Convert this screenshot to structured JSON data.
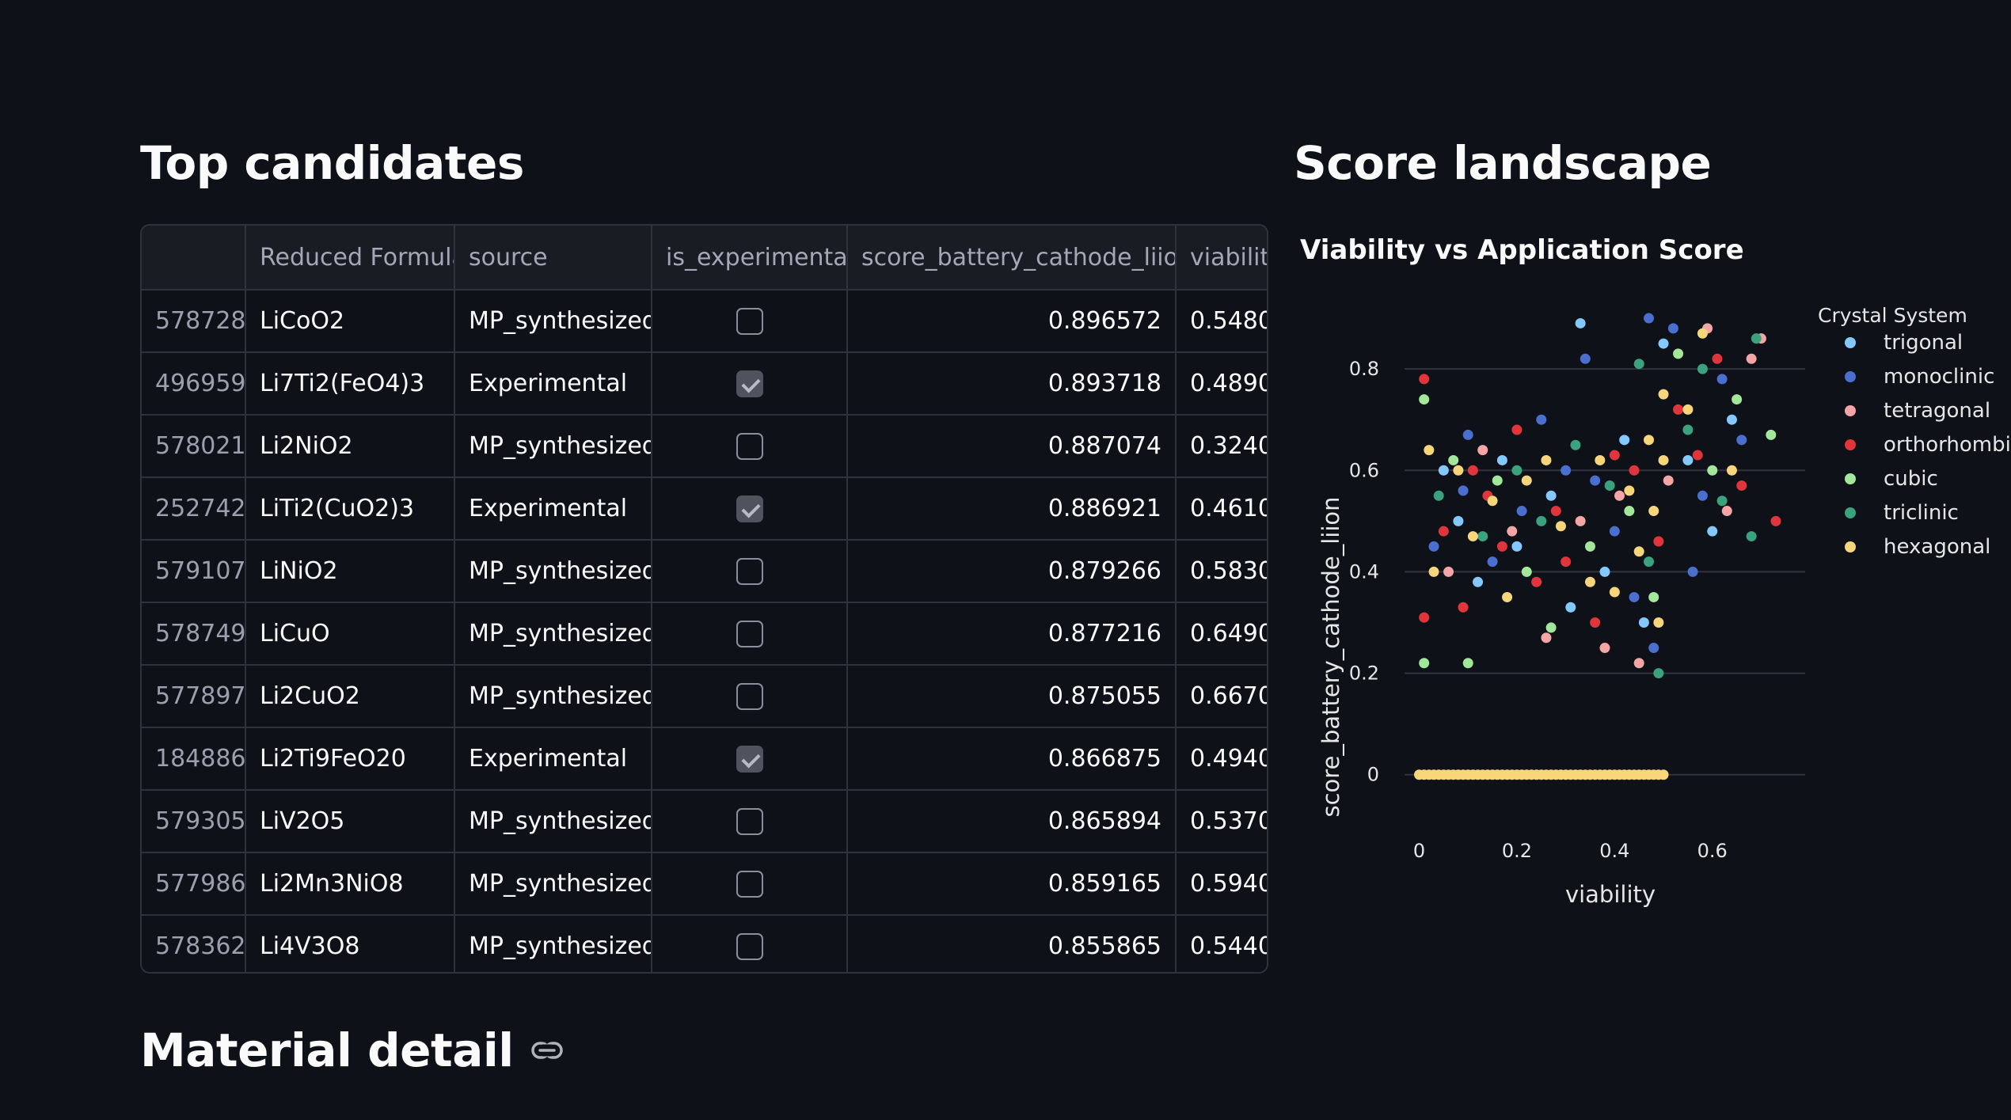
{
  "headings": {
    "top_candidates": "Top candidates",
    "score_landscape": "Score landscape",
    "material_detail": "Material detail"
  },
  "table": {
    "columns": [
      "",
      "Reduced Formula",
      "source",
      "is_experimental",
      "score_battery_cathode_liion",
      "viability"
    ],
    "rows": [
      {
        "index": "578728",
        "formula": "LiCoO2",
        "source": "MP_synthesized",
        "is_experimental": false,
        "score": "0.896572",
        "viability": "0.548000"
      },
      {
        "index": "496959",
        "formula": "Li7Ti2(FeO4)3",
        "source": "Experimental",
        "is_experimental": true,
        "score": "0.893718",
        "viability": "0.489000"
      },
      {
        "index": "578021",
        "formula": "Li2NiO2",
        "source": "MP_synthesized",
        "is_experimental": false,
        "score": "0.887074",
        "viability": "0.324000"
      },
      {
        "index": "252742",
        "formula": "LiTi2(CuO2)3",
        "source": "Experimental",
        "is_experimental": true,
        "score": "0.886921",
        "viability": "0.461000"
      },
      {
        "index": "579107",
        "formula": "LiNiO2",
        "source": "MP_synthesized",
        "is_experimental": false,
        "score": "0.879266",
        "viability": "0.583000"
      },
      {
        "index": "578749",
        "formula": "LiCuO",
        "source": "MP_synthesized",
        "is_experimental": false,
        "score": "0.877216",
        "viability": "0.649000"
      },
      {
        "index": "577897",
        "formula": "Li2CuO2",
        "source": "MP_synthesized",
        "is_experimental": false,
        "score": "0.875055",
        "viability": "0.667000"
      },
      {
        "index": "184886",
        "formula": "Li2Ti9FeO20",
        "source": "Experimental",
        "is_experimental": true,
        "score": "0.866875",
        "viability": "0.494000"
      },
      {
        "index": "579305",
        "formula": "LiV2O5",
        "source": "MP_synthesized",
        "is_experimental": false,
        "score": "0.865894",
        "viability": "0.537000"
      },
      {
        "index": "577986",
        "formula": "Li2Mn3NiO8",
        "source": "MP_synthesized",
        "is_experimental": false,
        "score": "0.859165",
        "viability": "0.594000"
      },
      {
        "index": "578362",
        "formula": "Li4V3O8",
        "source": "MP_synthesized",
        "is_experimental": false,
        "score": "0.855865",
        "viability": "0.544000"
      }
    ]
  },
  "chart_data": {
    "type": "scatter",
    "title": "Viability vs Application Score",
    "xlabel": "viability",
    "ylabel": "score_battery_cathode_liion",
    "xlim": [
      -0.03,
      0.79
    ],
    "ylim": [
      -0.08,
      0.95
    ],
    "xticks": [
      0,
      0.2,
      0.4,
      0.6
    ],
    "xtick_labels": [
      "0",
      "0.2",
      "0.4",
      "0.6"
    ],
    "yticks": [
      0,
      0.2,
      0.4,
      0.6,
      0.8
    ],
    "ytick_labels": [
      "0",
      "0.2",
      "0.4",
      "0.6",
      "0.8"
    ],
    "grid": "horizontal",
    "legend_title": "Crystal System",
    "legend_position": "right",
    "series": [
      {
        "name": "trigonal",
        "color": "#83c9ff",
        "points": [
          [
            0.33,
            0.89
          ],
          [
            0.05,
            0.6
          ],
          [
            0.2,
            0.45
          ],
          [
            0.12,
            0.38
          ],
          [
            0.42,
            0.66
          ],
          [
            0.46,
            0.3
          ],
          [
            0.55,
            0.62
          ],
          [
            0.6,
            0.48
          ],
          [
            0.27,
            0.55
          ],
          [
            0.08,
            0.5
          ],
          [
            0.38,
            0.4
          ],
          [
            0.64,
            0.7
          ],
          [
            0.5,
            0.85
          ],
          [
            0.17,
            0.62
          ],
          [
            0.31,
            0.33
          ]
        ]
      },
      {
        "name": "monoclinic",
        "color": "#4b6fcf",
        "points": [
          [
            0.34,
            0.82
          ],
          [
            0.47,
            0.9
          ],
          [
            0.52,
            0.88
          ],
          [
            0.1,
            0.67
          ],
          [
            0.25,
            0.7
          ],
          [
            0.4,
            0.48
          ],
          [
            0.58,
            0.55
          ],
          [
            0.62,
            0.78
          ],
          [
            0.03,
            0.45
          ],
          [
            0.15,
            0.42
          ],
          [
            0.3,
            0.6
          ],
          [
            0.44,
            0.35
          ],
          [
            0.48,
            0.25
          ],
          [
            0.66,
            0.66
          ],
          [
            0.21,
            0.52
          ],
          [
            0.36,
            0.58
          ],
          [
            0.56,
            0.4
          ],
          [
            0.09,
            0.56
          ]
        ]
      },
      {
        "name": "tetragonal",
        "color": "#f4a6a6",
        "points": [
          [
            0.59,
            0.88
          ],
          [
            0.7,
            0.86
          ],
          [
            0.38,
            0.25
          ],
          [
            0.45,
            0.22
          ],
          [
            0.26,
            0.27
          ],
          [
            0.13,
            0.64
          ],
          [
            0.51,
            0.58
          ],
          [
            0.63,
            0.52
          ],
          [
            0.19,
            0.48
          ],
          [
            0.41,
            0.55
          ],
          [
            0.06,
            0.4
          ],
          [
            0.33,
            0.5
          ],
          [
            0.68,
            0.82
          ]
        ]
      },
      {
        "name": "orthorhombic",
        "color": "#e0353b",
        "points": [
          [
            0.01,
            0.78
          ],
          [
            0.73,
            0.5
          ],
          [
            0.01,
            0.31
          ],
          [
            0.09,
            0.33
          ],
          [
            0.2,
            0.68
          ],
          [
            0.3,
            0.42
          ],
          [
            0.44,
            0.6
          ],
          [
            0.53,
            0.72
          ],
          [
            0.57,
            0.63
          ],
          [
            0.14,
            0.55
          ],
          [
            0.05,
            0.48
          ],
          [
            0.36,
            0.3
          ],
          [
            0.49,
            0.46
          ],
          [
            0.61,
            0.82
          ],
          [
            0.24,
            0.38
          ],
          [
            0.11,
            0.6
          ],
          [
            0.4,
            0.63
          ],
          [
            0.66,
            0.57
          ],
          [
            0.28,
            0.52
          ],
          [
            0.17,
            0.45
          ]
        ]
      },
      {
        "name": "cubic",
        "color": "#a3e89a",
        "points": [
          [
            0.01,
            0.74
          ],
          [
            0.01,
            0.22
          ],
          [
            0.1,
            0.22
          ],
          [
            0.27,
            0.29
          ],
          [
            0.53,
            0.83
          ],
          [
            0.72,
            0.67
          ],
          [
            0.22,
            0.4
          ],
          [
            0.43,
            0.52
          ],
          [
            0.07,
            0.62
          ],
          [
            0.35,
            0.45
          ],
          [
            0.6,
            0.6
          ],
          [
            0.48,
            0.35
          ],
          [
            0.16,
            0.58
          ],
          [
            0.65,
            0.74
          ]
        ]
      },
      {
        "name": "triclinic",
        "color": "#3aa37e",
        "points": [
          [
            0.69,
            0.86
          ],
          [
            0.68,
            0.47
          ],
          [
            0.45,
            0.81
          ],
          [
            0.49,
            0.2
          ],
          [
            0.25,
            0.5
          ],
          [
            0.39,
            0.57
          ],
          [
            0.55,
            0.68
          ],
          [
            0.13,
            0.47
          ],
          [
            0.32,
            0.65
          ],
          [
            0.47,
            0.42
          ],
          [
            0.04,
            0.55
          ],
          [
            0.58,
            0.8
          ],
          [
            0.2,
            0.6
          ],
          [
            0.62,
            0.54
          ]
        ]
      },
      {
        "name": "hexagonal",
        "color": "#f7d57a",
        "points": [
          [
            0.02,
            0.64
          ],
          [
            0.08,
            0.6
          ],
          [
            0.15,
            0.54
          ],
          [
            0.22,
            0.58
          ],
          [
            0.29,
            0.49
          ],
          [
            0.35,
            0.38
          ],
          [
            0.4,
            0.36
          ],
          [
            0.45,
            0.44
          ],
          [
            0.48,
            0.52
          ],
          [
            0.5,
            0.75
          ],
          [
            0.49,
            0.3
          ],
          [
            0.5,
            0.62
          ],
          [
            0.47,
            0.66
          ],
          [
            0.43,
            0.56
          ],
          [
            0.37,
            0.62
          ],
          [
            0.55,
            0.72
          ],
          [
            0.64,
            0.6
          ],
          [
            0.58,
            0.87
          ],
          [
            0.03,
            0.4
          ],
          [
            0.11,
            0.47
          ],
          [
            0.18,
            0.35
          ],
          [
            0.26,
            0.62
          ]
        ]
      }
    ],
    "zero_band": {
      "series": "hexagonal",
      "x_range": [
        0.0,
        0.5
      ],
      "y": 0
    }
  }
}
